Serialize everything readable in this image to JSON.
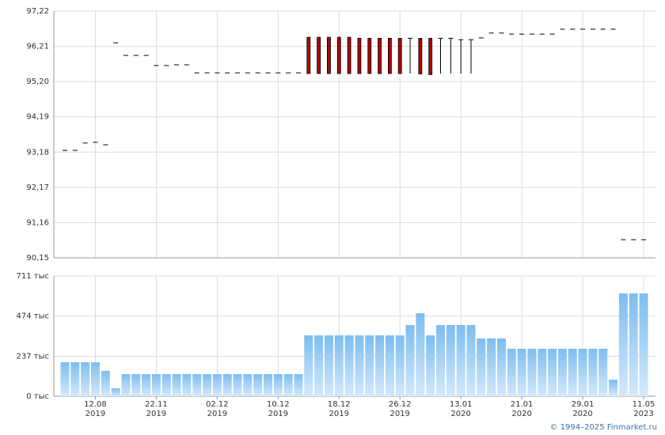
{
  "chart_data": [
    {
      "type": "candlestick",
      "color": "#000000",
      "down_color": "#b30000",
      "ylim": [
        90.15,
        97.22
      ],
      "yticks": [
        {
          "value": 90.15,
          "label": "90,15"
        },
        {
          "value": 91.16,
          "label": "91,16"
        },
        {
          "value": 92.17,
          "label": "92,17"
        },
        {
          "value": 93.18,
          "label": "93,18"
        },
        {
          "value": 94.19,
          "label": "94,19"
        },
        {
          "value": 95.2,
          "label": "95,20"
        },
        {
          "value": 96.21,
          "label": "96,21"
        },
        {
          "value": 97.22,
          "label": "97,22"
        }
      ],
      "grid": true,
      "open": [
        93.23,
        93.23,
        93.44,
        93.46,
        93.39,
        96.31,
        95.95,
        95.95,
        95.95,
        95.66,
        95.66,
        95.68,
        95.68,
        95.45,
        95.45,
        95.45,
        95.45,
        95.45,
        95.45,
        95.45,
        95.45,
        95.45,
        95.45,
        95.45,
        96.47,
        96.47,
        96.47,
        96.47,
        96.47,
        96.44,
        96.44,
        96.44,
        96.44,
        96.44,
        96.44,
        96.44,
        96.44,
        96.44,
        96.44,
        96.4,
        96.4,
        96.45,
        96.59,
        96.59,
        96.56,
        96.56,
        96.56,
        96.56,
        96.56,
        96.7,
        96.7,
        96.7,
        96.7,
        96.7,
        96.7,
        90.67,
        90.67,
        90.67
      ],
      "high": [
        93.23,
        93.23,
        93.44,
        93.46,
        93.39,
        96.31,
        95.95,
        95.95,
        95.95,
        95.66,
        95.66,
        95.68,
        95.68,
        95.45,
        95.45,
        95.45,
        95.45,
        95.45,
        95.45,
        95.45,
        95.45,
        95.45,
        95.45,
        95.45,
        96.47,
        96.47,
        96.47,
        96.47,
        96.47,
        96.44,
        96.44,
        96.44,
        96.44,
        96.44,
        96.44,
        96.44,
        96.44,
        96.44,
        96.44,
        96.4,
        96.4,
        96.45,
        96.59,
        96.59,
        96.56,
        96.56,
        96.56,
        96.56,
        96.56,
        96.7,
        96.7,
        96.7,
        96.7,
        96.7,
        96.7,
        90.67,
        90.67,
        90.67
      ],
      "low": [
        93.23,
        93.23,
        93.44,
        93.46,
        93.39,
        96.31,
        95.95,
        95.95,
        95.95,
        95.66,
        95.66,
        95.68,
        95.68,
        95.45,
        95.45,
        95.45,
        95.45,
        95.45,
        95.45,
        95.45,
        95.45,
        95.45,
        95.45,
        95.45,
        95.43,
        95.43,
        95.43,
        95.43,
        95.43,
        95.43,
        95.43,
        95.43,
        95.43,
        95.43,
        95.43,
        95.42,
        95.4,
        95.43,
        95.43,
        95.43,
        95.43,
        96.45,
        96.59,
        96.59,
        96.56,
        96.56,
        96.56,
        96.56,
        96.56,
        96.7,
        96.7,
        96.7,
        96.7,
        96.7,
        96.7,
        90.67,
        90.67,
        90.67
      ],
      "close": [
        93.23,
        93.23,
        93.44,
        93.46,
        93.39,
        96.31,
        95.95,
        95.95,
        95.95,
        95.66,
        95.66,
        95.68,
        95.68,
        95.45,
        95.45,
        95.45,
        95.45,
        95.45,
        95.45,
        95.45,
        95.45,
        95.45,
        95.45,
        95.45,
        95.43,
        95.43,
        95.43,
        95.43,
        95.43,
        95.43,
        95.43,
        95.43,
        95.43,
        95.43,
        96.44,
        95.42,
        95.4,
        96.44,
        96.44,
        96.4,
        96.4,
        96.45,
        96.59,
        96.59,
        96.56,
        96.56,
        96.56,
        96.56,
        96.56,
        96.7,
        96.7,
        96.7,
        96.7,
        96.7,
        96.7,
        90.67,
        90.67,
        90.67
      ]
    },
    {
      "type": "bar",
      "color": "#7dbdf0",
      "ylim": [
        0,
        711
      ],
      "yticks": [
        {
          "value": 0,
          "label": "0 тыс"
        },
        {
          "value": 237,
          "label": "237 тыс"
        },
        {
          "value": 474,
          "label": "474 тыс"
        },
        {
          "value": 711,
          "label": "711 тыс"
        }
      ],
      "grid": true,
      "categories": [
        null,
        null,
        null,
        "12.08\n2019",
        null,
        null,
        null,
        null,
        null,
        "22.11\n2019",
        null,
        null,
        null,
        null,
        null,
        "02.12\n2019",
        null,
        null,
        null,
        null,
        null,
        "10.12\n2019",
        null,
        null,
        null,
        null,
        null,
        "18.12\n2019",
        null,
        null,
        null,
        null,
        null,
        "26.12\n2019",
        null,
        null,
        null,
        null,
        null,
        "13.01\n2020",
        null,
        null,
        null,
        null,
        null,
        "21.01\n2020",
        null,
        null,
        null,
        null,
        null,
        "29.01\n2020",
        null,
        null,
        null,
        null,
        null,
        "11.05\n2023"
      ],
      "values": [
        201,
        201,
        201,
        201,
        150,
        47,
        131,
        131,
        131,
        131,
        131,
        131,
        131,
        131,
        131,
        131,
        131,
        131,
        131,
        131,
        131,
        131,
        131,
        131,
        360,
        360,
        360,
        360,
        360,
        360,
        360,
        360,
        360,
        360,
        421,
        491,
        360,
        421,
        421,
        421,
        421,
        342,
        342,
        342,
        281,
        281,
        281,
        281,
        281,
        281,
        281,
        281,
        281,
        281,
        98,
        608,
        608,
        608
      ]
    }
  ],
  "footer": "© 1994–2025 Finmarket.ru"
}
